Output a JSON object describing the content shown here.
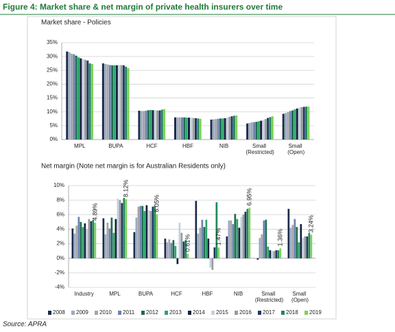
{
  "title": "Figure 4: Market share & net margin of private health insurers over time",
  "source": "Source: APRA",
  "chart_data": [
    {
      "type": "bar",
      "title": "Market share - Policies",
      "categories": [
        "MPL",
        "BUPA",
        "HCF",
        "HBF",
        "NIB",
        "Small (Restricted)",
        "Small (Open)"
      ],
      "ylim": [
        0,
        35
      ],
      "yticks": [
        {
          "value": 0,
          "label": "0%"
        },
        {
          "value": 5,
          "label": "5%"
        },
        {
          "value": 10,
          "label": "10%"
        },
        {
          "value": 15,
          "label": "15%"
        },
        {
          "value": 20,
          "label": "20%"
        },
        {
          "value": 25,
          "label": "25%"
        },
        {
          "value": 30,
          "label": "30%"
        },
        {
          "value": 35,
          "label": "35%"
        }
      ],
      "grid": true,
      "series": [
        {
          "color": "#1c2b4a",
          "values": [
            31.8,
            27.5,
            10.4,
            8.0,
            7.2,
            5.8,
            9.3
          ]
        },
        {
          "color": "#9aaac4",
          "values": [
            31.5,
            27.3,
            10.3,
            8.0,
            7.3,
            6.0,
            9.6
          ]
        },
        {
          "color": "#a5a5a5",
          "values": [
            31.0,
            27.1,
            10.3,
            8.0,
            7.4,
            6.2,
            9.9
          ]
        },
        {
          "color": "#6a83b0",
          "values": [
            30.8,
            26.9,
            10.4,
            8.0,
            7.5,
            6.3,
            10.3
          ]
        },
        {
          "color": "#1d6b50",
          "values": [
            30.3,
            26.8,
            10.6,
            8.0,
            7.6,
            6.4,
            10.5
          ]
        },
        {
          "color": "#2ea36a",
          "values": [
            29.7,
            26.8,
            10.7,
            7.9,
            7.6,
            6.6,
            10.9
          ]
        },
        {
          "color": "#14213d",
          "values": [
            29.3,
            26.8,
            10.6,
            7.9,
            7.7,
            6.8,
            11.2
          ]
        },
        {
          "color": "#c5d0e0",
          "values": [
            29.0,
            26.9,
            10.6,
            7.9,
            7.9,
            7.0,
            11.5
          ]
        },
        {
          "color": "#9a9a9a",
          "values": [
            28.8,
            26.9,
            10.5,
            7.8,
            8.2,
            7.4,
            11.7
          ]
        },
        {
          "color": "#1f3864",
          "values": [
            28.5,
            26.8,
            10.5,
            7.7,
            8.4,
            7.8,
            11.8
          ]
        },
        {
          "color": "#1e8a5a",
          "values": [
            27.5,
            26.3,
            10.8,
            7.6,
            8.6,
            8.1,
            11.9
          ]
        },
        {
          "color": "#7fd15a",
          "values": [
            27.3,
            25.8,
            11.0,
            7.5,
            8.7,
            8.4,
            11.9
          ]
        }
      ]
    },
    {
      "type": "bar",
      "title": "Net margin (Note net margin is for Australian Residents only)",
      "categories": [
        "Industry",
        "MPL",
        "BUPA",
        "HCF",
        "HBF",
        "NIB",
        "Small (Restricted)",
        "Small (Open)"
      ],
      "ylim": [
        -4,
        10
      ],
      "yticks": [
        {
          "value": -4,
          "label": "-4%"
        },
        {
          "value": -2,
          "label": "-2%"
        },
        {
          "value": 0,
          "label": "0%"
        },
        {
          "value": 2,
          "label": "2%"
        },
        {
          "value": 4,
          "label": "4%"
        },
        {
          "value": 6,
          "label": "6%"
        },
        {
          "value": 8,
          "label": "8%"
        },
        {
          "value": 10,
          "label": "10%"
        }
      ],
      "grid": true,
      "legend": "bottom",
      "series": [
        {
          "name": "2008",
          "color": "#1c2b4a",
          "values": [
            4.1,
            5.5,
            3.6,
            2.7,
            7.9,
            3.0,
            -0.2,
            6.8
          ]
        },
        {
          "name": "2009",
          "color": "#9aaac4",
          "values": [
            3.4,
            3.3,
            5.6,
            2.2,
            3.4,
            5.2,
            2.8,
            4.2
          ]
        },
        {
          "name": "2010",
          "color": "#a5a5a5",
          "values": [
            4.5,
            4.9,
            7.1,
            2.6,
            4.2,
            5.2,
            3.3,
            4.6
          ]
        },
        {
          "name": "2011",
          "color": "#6a83b0",
          "values": [
            5.7,
            4.1,
            7.2,
            2.1,
            5.3,
            4.7,
            5.2,
            5.4
          ]
        },
        {
          "name": "2012",
          "color": "#1d6b50",
          "values": [
            5.0,
            5.6,
            7.2,
            2.5,
            4.3,
            6.1,
            5.3,
            4.3
          ]
        },
        {
          "name": "2013",
          "color": "#2ea36a",
          "values": [
            4.3,
            3.5,
            6.5,
            1.7,
            5.3,
            5.4,
            1.6,
            2.2
          ]
        },
        {
          "name": "2014",
          "color": "#14213d",
          "values": [
            4.8,
            5.4,
            7.3,
            -0.8,
            2.7,
            4.2,
            1.1,
            4.7
          ]
        },
        {
          "name": "2015",
          "color": "#c5d0e0",
          "values": [
            4.0,
            8.2,
            6.6,
            4.9,
            -1.3,
            5.7,
            1.0,
            2.8
          ]
        },
        {
          "name": "2016",
          "color": "#9a9a9a",
          "values": [
            5.4,
            8.0,
            6.5,
            3.5,
            -1.6,
            6.0,
            1.0,
            3.0
          ]
        },
        {
          "name": "2017",
          "color": "#1f3864",
          "values": [
            5.1,
            7.6,
            7.1,
            2.3,
            1.5,
            6.4,
            1.1,
            3.0
          ]
        },
        {
          "name": "2018",
          "color": "#1e8a5a",
          "values": [
            5.3,
            8.3,
            7.2,
            2.5,
            7.7,
            6.8,
            1.1,
            3.5
          ]
        },
        {
          "name": "2019",
          "color": "#7fd15a",
          "values": [
            4.89,
            8.12,
            6.05,
            0.61,
            1.47,
            6.95,
            1.36,
            3.24
          ],
          "value_labels": [
            "4.89%",
            "8.12%",
            "6.05%",
            "0.61%",
            "1.47%",
            "6.95%",
            "1.36%",
            "3.24%"
          ]
        }
      ]
    }
  ]
}
